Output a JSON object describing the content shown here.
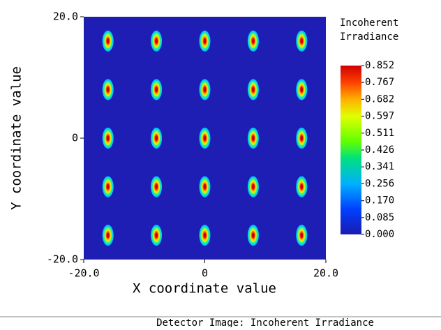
{
  "chart_data": {
    "type": "detector",
    "x_label": "X coordinate value",
    "y_label": "Y coordinate value",
    "xlim": [
      -20,
      20
    ],
    "ylim": [
      -20,
      20
    ],
    "xticks": [
      {
        "value": -20,
        "label": "-20.0"
      },
      0,
      {
        "value": 20,
        "label": "20.0"
      }
    ],
    "yticks": [
      {
        "value": -20,
        "label": "-20.0"
      },
      0,
      {
        "value": 20,
        "label": "20.0"
      }
    ],
    "spot_x": [
      -16,
      -8,
      0,
      8,
      16
    ],
    "spot_y": [
      16,
      8,
      0,
      -8,
      -16
    ],
    "colorbar_title": [
      "Incoherent",
      "Irradiance"
    ],
    "clim": [
      0,
      0.852
    ],
    "colorbar_ticks": [
      {
        "value": 0.852,
        "label": "0.852"
      },
      {
        "value": 0.767,
        "label": "0.767"
      },
      {
        "value": 0.682,
        "label": "0.682"
      },
      {
        "value": 0.597,
        "label": "0.597"
      },
      {
        "value": 0.511,
        "label": "0.511"
      },
      {
        "value": 0.426,
        "label": "0.426"
      },
      {
        "value": 0.341,
        "label": "0.341"
      },
      {
        "value": 0.256,
        "label": "0.256"
      },
      {
        "value": 0.17,
        "label": "0.170"
      },
      {
        "value": 0.085,
        "label": "0.085"
      },
      {
        "value": 0,
        "label": "0.000"
      }
    ],
    "footer": "Detector Image: Incoherent Irradiance"
  }
}
